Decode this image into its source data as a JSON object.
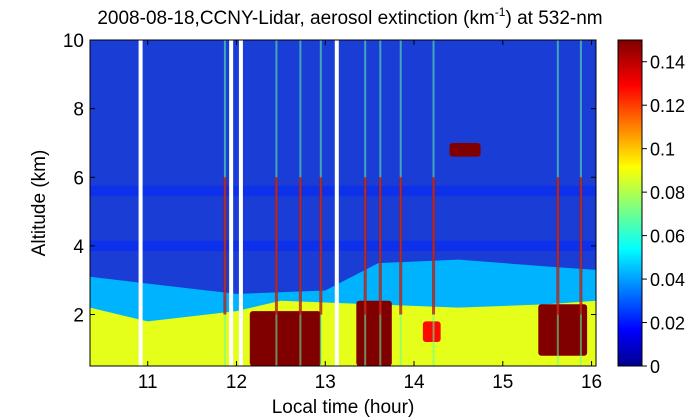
{
  "chart_data": {
    "type": "heatmap",
    "title": "2008-08-18,CCNY-Lidar, aerosol extinction (km",
    "title_sup": "-1",
    "title_tail": ") at 532-nm",
    "xlabel": "Local time (hour)",
    "ylabel": "Altitude (km)",
    "xlim": [
      10.35,
      16.05
    ],
    "ylim": [
      0.5,
      10
    ],
    "x_ticks": [
      "11",
      "12",
      "13",
      "14",
      "15",
      "16"
    ],
    "x_tick_values": [
      11,
      12,
      13,
      14,
      15,
      16
    ],
    "y_ticks": [
      "2",
      "4",
      "6",
      "8",
      "10"
    ],
    "y_tick_values": [
      2,
      4,
      6,
      8,
      10
    ],
    "colorbar": {
      "range": [
        0,
        0.15
      ],
      "ticks": [
        "0",
        "0.02",
        "0.04",
        "0.06",
        "0.08",
        "0.1",
        "0.12",
        "0.14"
      ],
      "tick_values": [
        0,
        0.02,
        0.04,
        0.06,
        0.08,
        0.1,
        0.12,
        0.14
      ],
      "colormap": "jet"
    },
    "data_gaps_hours": [
      10.92,
      11.94,
      12.05,
      13.13
    ],
    "layers": {
      "boundary_layer_top_km": [
        {
          "t": 10.35,
          "z": 3.1
        },
        {
          "t": 11.0,
          "z": 2.9
        },
        {
          "t": 12.0,
          "z": 2.6
        },
        {
          "t": 13.0,
          "z": 2.7
        },
        {
          "t": 13.6,
          "z": 3.5
        },
        {
          "t": 14.5,
          "z": 3.6
        },
        {
          "t": 15.5,
          "z": 3.4
        },
        {
          "t": 16.05,
          "z": 3.3
        }
      ],
      "mixed_layer_top_km": [
        {
          "t": 10.35,
          "z": 2.2
        },
        {
          "t": 11.0,
          "z": 1.8
        },
        {
          "t": 12.0,
          "z": 2.1
        },
        {
          "t": 12.5,
          "z": 2.4
        },
        {
          "t": 13.5,
          "z": 2.3
        },
        {
          "t": 14.5,
          "z": 2.2
        },
        {
          "t": 15.5,
          "z": 2.3
        },
        {
          "t": 16.05,
          "z": 2.4
        }
      ],
      "near_surface_extinction": 0.09,
      "free_troposphere_extinction": 0.015
    },
    "high_extinction_patches": [
      {
        "t0": 12.15,
        "t1": 12.95,
        "z0": 0.5,
        "z1": 2.1,
        "value": 0.15
      },
      {
        "t0": 13.35,
        "t1": 13.75,
        "z0": 0.5,
        "z1": 2.4,
        "value": 0.15
      },
      {
        "t0": 14.1,
        "t1": 14.3,
        "z0": 1.2,
        "z1": 1.8,
        "value": 0.13
      },
      {
        "t0": 15.4,
        "t1": 15.95,
        "z0": 0.8,
        "z1": 2.3,
        "value": 0.15
      },
      {
        "t0": 14.4,
        "t1": 14.75,
        "z0": 6.6,
        "z1": 7.0,
        "value": 0.15
      }
    ],
    "vertical_streaks_hours": [
      11.87,
      12.45,
      12.72,
      12.95,
      13.45,
      13.62,
      13.85,
      14.22,
      15.62,
      15.88
    ]
  }
}
